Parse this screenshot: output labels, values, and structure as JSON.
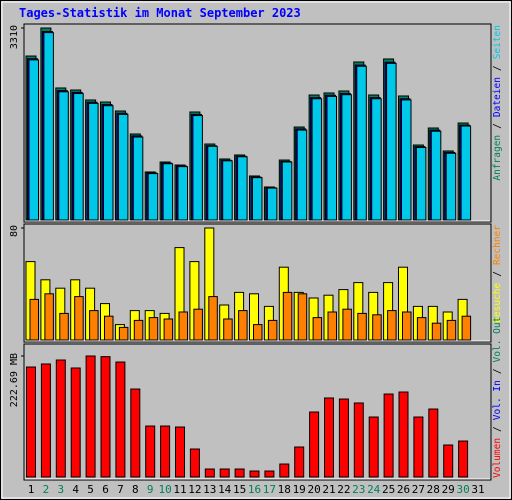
{
  "chart_data": {
    "type": "bar",
    "title": "Tages-Statistik im Monat September 2023",
    "title_color": "#0000ff",
    "legend_separator": "/",
    "categories": [
      "1",
      "2",
      "3",
      "4",
      "5",
      "6",
      "7",
      "8",
      "9",
      "10",
      "11",
      "12",
      "13",
      "14",
      "15",
      "16",
      "17",
      "18",
      "19",
      "20",
      "21",
      "22",
      "23",
      "24",
      "25",
      "26",
      "27",
      "28",
      "29",
      "30",
      "31"
    ],
    "category_colors": [
      "#000000",
      "#00805c",
      "#00805c",
      "#000000",
      "#000000",
      "#000000",
      "#000000",
      "#000000",
      "#00805c",
      "#00805c",
      "#000000",
      "#000000",
      "#000000",
      "#000000",
      "#000000",
      "#00805c",
      "#00805c",
      "#000000",
      "#000000",
      "#000000",
      "#000000",
      "#000000",
      "#00805c",
      "#00805c",
      "#000000",
      "#000000",
      "#000000",
      "#000000",
      "#000000",
      "#00805c",
      "#000000"
    ],
    "panels": [
      {
        "ylim": [
          0,
          3310
        ],
        "yticks": [
          3310
        ],
        "series": [
          {
            "name": "Anfragen",
            "color": "#00805c",
            "values": [
              2827,
              3310,
              2276,
              2241,
              2069,
              2034,
              1879,
              1483,
              828,
              1000,
              948,
              1862,
              1310,
              1052,
              1121,
              759,
              569,
              1034,
              1603,
              2155,
              2190,
              2224,
              2724,
              2155,
              2776,
              2138,
              1293,
              1586,
              1190,
              1672,
              null
            ]
          },
          {
            "name": "Dateien",
            "color": "#0000ff",
            "values": [
              2780,
              3250,
              2230,
              2200,
              2030,
              1990,
              1840,
              1450,
              810,
              980,
              930,
              1820,
              1280,
              1030,
              1100,
              740,
              555,
              1010,
              1570,
              2110,
              2150,
              2180,
              2670,
              2110,
              2720,
              2090,
              1265,
              1550,
              1165,
              1635,
              null
            ]
          },
          {
            "name": "Seiten",
            "color": "#00c8e8",
            "values": [
              2760,
              3230,
              2210,
              2180,
              2010,
              1970,
              1820,
              1430,
              800,
              970,
              920,
              1800,
              1270,
              1020,
              1090,
              730,
              550,
              1000,
              1550,
              2090,
              2130,
              2160,
              2650,
              2090,
              2700,
              2070,
              1250,
              1530,
              1150,
              1620,
              null
            ]
          }
        ]
      },
      {
        "ylim": [
          0,
          80
        ],
        "yticks": [
          80
        ],
        "series": [
          {
            "name": "Besuche",
            "color": "#ffff00",
            "values": [
              56,
              43,
              37,
              43,
              37,
              26,
              11,
              21,
              21,
              19,
              66,
              56,
              80,
              25,
              34,
              33,
              24,
              52,
              34,
              30,
              32,
              36,
              41,
              34,
              41,
              52,
              24,
              24,
              20,
              29,
              null
            ]
          },
          {
            "name": "Rechner",
            "color": "#ff8000",
            "values": [
              29,
              33,
              19,
              31,
              21,
              17,
              9,
              14,
              16,
              15,
              20,
              22,
              31,
              15,
              21,
              11,
              14,
              34,
              33,
              16,
              20,
              22,
              19,
              18,
              21,
              20,
              16,
              12,
              14,
              17,
              null
            ]
          }
        ]
      },
      {
        "ylim": [
          0,
          222.69
        ],
        "yticks": [
          {
            "value": 222.69,
            "label": "222.69 MB"
          }
        ],
        "series": [
          {
            "name": "Volumen",
            "color": "#ff0000",
            "values": [
              202.4,
              208.0,
              215.3,
              200.6,
              222.69,
              221.5,
              211.6,
              161.9,
              93.8,
              93.8,
              92.0,
              51.5,
              14.7,
              14.7,
              14.7,
              11.0,
              11.0,
              23.9,
              55.2,
              119.6,
              145.4,
              143.5,
              136.2,
              110.4,
              152.7,
              156.4,
              110.4,
              125.1,
              58.9,
              66.2,
              null
            ]
          },
          {
            "name": "Vol. In",
            "color": "#0000ff"
          },
          {
            "name": "Vol. Out",
            "color": "#00805c"
          }
        ]
      }
    ]
  }
}
